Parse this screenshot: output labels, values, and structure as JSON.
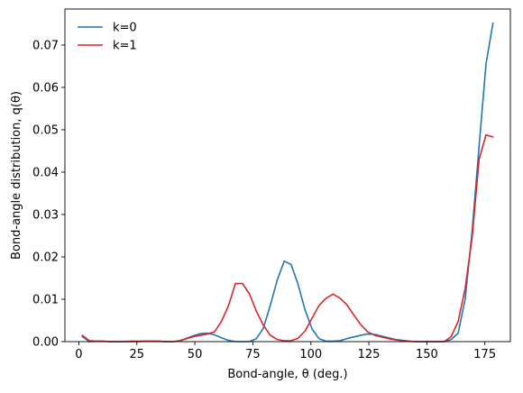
{
  "chart_data": {
    "type": "line",
    "xlabel": "Bond-angle, θ (deg.)",
    "ylabel": "Bond-angle distribution, q(θ)",
    "xlim": [
      -6,
      186
    ],
    "ylim": [
      0,
      0.0785
    ],
    "xticks": [
      0,
      25,
      50,
      75,
      100,
      125,
      150,
      175
    ],
    "yticks": [
      0.0,
      0.01,
      0.02,
      0.03,
      0.04,
      0.05,
      0.06,
      0.07
    ],
    "ytick_labels": [
      "0.00",
      "0.01",
      "0.02",
      "0.03",
      "0.04",
      "0.05",
      "0.06",
      "0.07"
    ],
    "grid": false,
    "legend_position": "top-left",
    "series": [
      {
        "name": "k=0",
        "color": "#1f77b4",
        "x": [
          1.5,
          4.5,
          7.5,
          10.5,
          13.5,
          16.5,
          19.5,
          22.5,
          25.5,
          28.5,
          31.5,
          34.5,
          37.5,
          40.5,
          43.5,
          46.5,
          49.5,
          52.5,
          55.5,
          58.5,
          61.5,
          64.5,
          67.5,
          70.5,
          73.5,
          76.5,
          79.5,
          82.5,
          85.5,
          88.5,
          91.5,
          94.5,
          97.5,
          100.5,
          103.5,
          106.5,
          109.5,
          112.5,
          115.5,
          118.5,
          121.5,
          124.5,
          127.5,
          130.5,
          133.5,
          136.5,
          139.5,
          142.5,
          145.5,
          148.5,
          151.5,
          154.5,
          157.5,
          160.5,
          163.5,
          166.5,
          169.5,
          172.5,
          175.5,
          178.5
        ],
        "y": [
          0.0012,
          0.0,
          0.0001,
          0.0001,
          0.0,
          0.0,
          0.0,
          0.0,
          0.0,
          0.0001,
          0.0001,
          0.0001,
          0.0,
          0.0,
          0.0002,
          0.0008,
          0.0014,
          0.0019,
          0.002,
          0.0016,
          0.0009,
          0.0003,
          0.0,
          0.0,
          0.0,
          0.0007,
          0.0031,
          0.0085,
          0.0145,
          0.019,
          0.0182,
          0.0135,
          0.0075,
          0.003,
          0.0007,
          0.0001,
          0.0001,
          0.0002,
          0.0007,
          0.0011,
          0.0015,
          0.0018,
          0.0017,
          0.0013,
          0.0009,
          0.0005,
          0.0003,
          0.0001,
          0.0,
          0.0,
          0.0,
          0.0,
          0.0,
          0.0005,
          0.002,
          0.01,
          0.026,
          0.046,
          0.0655,
          0.0752
        ]
      },
      {
        "name": "k=1",
        "color": "#d62728",
        "x": [
          1.5,
          4.5,
          7.5,
          10.5,
          13.5,
          16.5,
          19.5,
          22.5,
          25.5,
          28.5,
          31.5,
          34.5,
          37.5,
          40.5,
          43.5,
          46.5,
          49.5,
          52.5,
          55.5,
          58.5,
          61.5,
          64.5,
          67.5,
          70.5,
          73.5,
          76.5,
          79.5,
          82.5,
          85.5,
          88.5,
          91.5,
          94.5,
          97.5,
          100.5,
          103.5,
          106.5,
          109.5,
          112.5,
          115.5,
          118.5,
          121.5,
          124.5,
          127.5,
          130.5,
          133.5,
          136.5,
          139.5,
          142.5,
          145.5,
          148.5,
          151.5,
          154.5,
          157.5,
          160.5,
          163.5,
          166.5,
          169.5,
          172.5,
          175.5,
          178.5
        ],
        "y": [
          0.0015,
          0.0002,
          0.0001,
          0.0001,
          0.0,
          0.0,
          0.0,
          0.0001,
          0.0001,
          0.0001,
          0.0001,
          0.0001,
          0.0,
          0.0,
          0.0002,
          0.0007,
          0.0012,
          0.0015,
          0.0018,
          0.0023,
          0.0048,
          0.0085,
          0.0137,
          0.0137,
          0.0113,
          0.0072,
          0.0039,
          0.0015,
          0.0005,
          0.0002,
          0.0002,
          0.0008,
          0.0025,
          0.0055,
          0.0085,
          0.0102,
          0.0112,
          0.0103,
          0.0087,
          0.0063,
          0.004,
          0.0023,
          0.0015,
          0.0011,
          0.0007,
          0.0004,
          0.0002,
          0.0001,
          0.0,
          0.0,
          0.0,
          0.0,
          0.0,
          0.0012,
          0.0048,
          0.0125,
          0.0245,
          0.043,
          0.0488,
          0.0483
        ]
      }
    ]
  }
}
